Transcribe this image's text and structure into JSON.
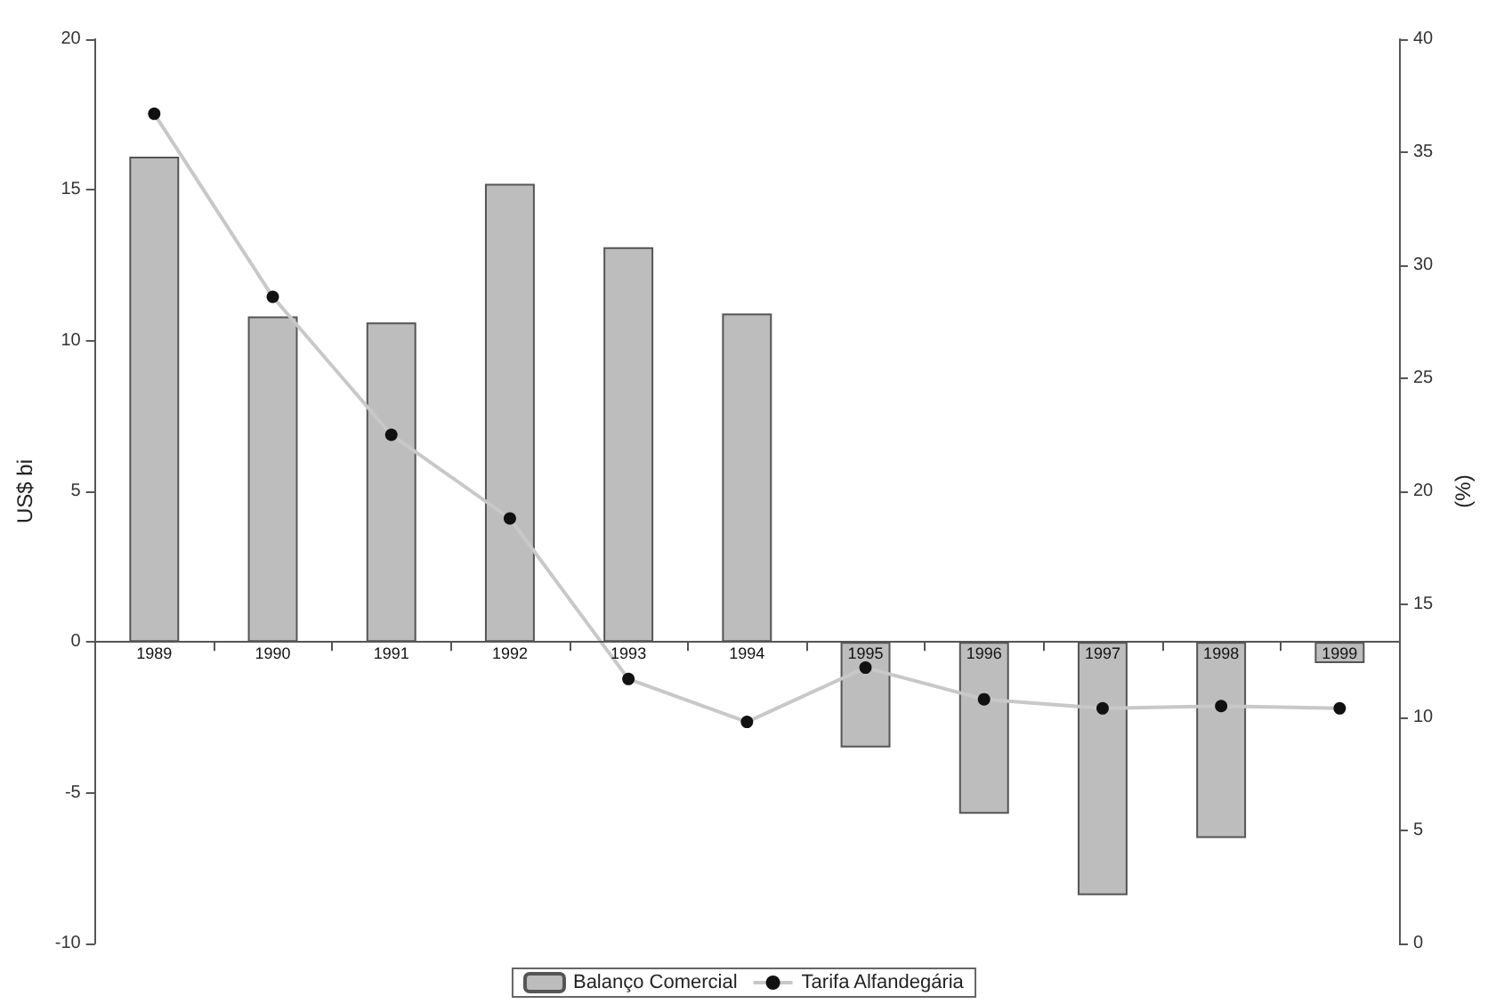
{
  "chart_data": {
    "type": "bar",
    "ylabel": "US$ bi",
    "y2label": "(%)",
    "categories": [
      "1989",
      "1990",
      "1991",
      "1992",
      "1993",
      "1994",
      "1995",
      "1996",
      "1997",
      "1998",
      "1999"
    ],
    "series": [
      {
        "name": "Balanço Comercial",
        "color": "#bdbdbd",
        "values": [
          16.1,
          10.8,
          10.6,
          15.2,
          13.1,
          10.9,
          -3.5,
          -5.7,
          -8.4,
          -6.5,
          -0.7
        ]
      },
      {
        "name": "Tarifa Alfandegária",
        "type": "line",
        "axis": "y2",
        "color": "#c8c8c8",
        "marker": "circle",
        "values": [
          36.7,
          28.6,
          22.5,
          18.8,
          11.7,
          9.8,
          12.2,
          10.8,
          10.4,
          10.5,
          10.4
        ]
      }
    ],
    "ylim": [
      -10,
      20
    ],
    "yticks": [
      -10,
      -5,
      0,
      5,
      10,
      15,
      20
    ],
    "y2lim": [
      0,
      40
    ],
    "y2ticks": [
      0,
      5,
      10,
      15,
      20,
      25,
      30,
      35,
      40
    ],
    "legend": "bottom"
  }
}
